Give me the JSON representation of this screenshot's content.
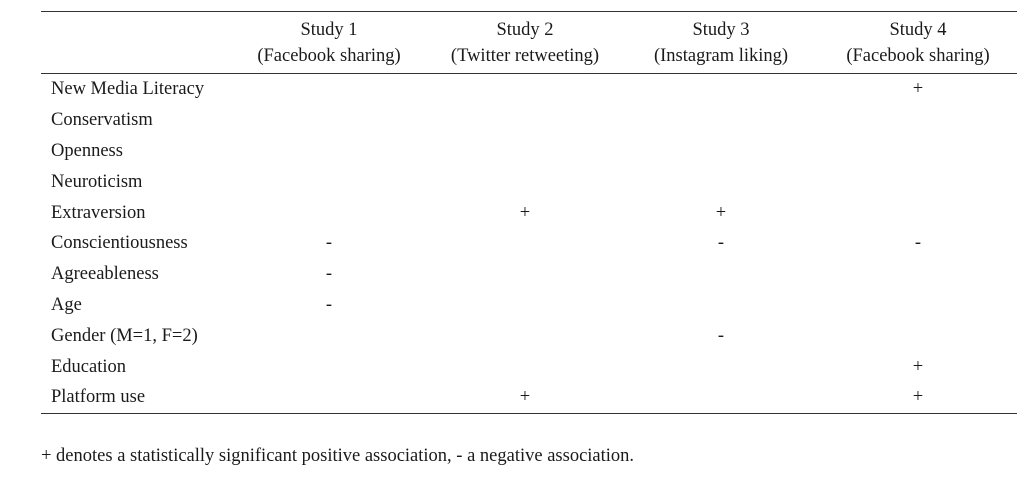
{
  "table": {
    "columns": [
      {
        "title": "Study 1",
        "subtitle": "(Facebook sharing)"
      },
      {
        "title": "Study 2",
        "subtitle": "(Twitter retweeting)"
      },
      {
        "title": "Study 3",
        "subtitle": "(Instagram liking)"
      },
      {
        "title": "Study 4",
        "subtitle": "(Facebook sharing)"
      }
    ],
    "rows": [
      {
        "label": "New Media Literacy",
        "cells": [
          "",
          "",
          "",
          "+"
        ]
      },
      {
        "label": "Conservatism",
        "cells": [
          "",
          "",
          "",
          ""
        ]
      },
      {
        "label": "Openness",
        "cells": [
          "",
          "",
          "",
          ""
        ]
      },
      {
        "label": "Neuroticism",
        "cells": [
          "",
          "",
          "",
          ""
        ]
      },
      {
        "label": "Extraversion",
        "cells": [
          "",
          "+",
          "+",
          ""
        ]
      },
      {
        "label": "Conscientiousness",
        "cells": [
          "-",
          "",
          "-",
          "-"
        ]
      },
      {
        "label": "Agreeableness",
        "cells": [
          "-",
          "",
          "",
          ""
        ]
      },
      {
        "label": "Age",
        "cells": [
          "-",
          "",
          "",
          ""
        ]
      },
      {
        "label": "Gender (M=1, F=2)",
        "cells": [
          "",
          "",
          "-",
          ""
        ]
      },
      {
        "label": "Education",
        "cells": [
          "",
          "",
          "",
          "+"
        ]
      },
      {
        "label": "Platform use",
        "cells": [
          "",
          "+",
          "",
          "+"
        ]
      }
    ]
  },
  "footnote": "+ denotes a statistically significant positive association, - a negative association."
}
